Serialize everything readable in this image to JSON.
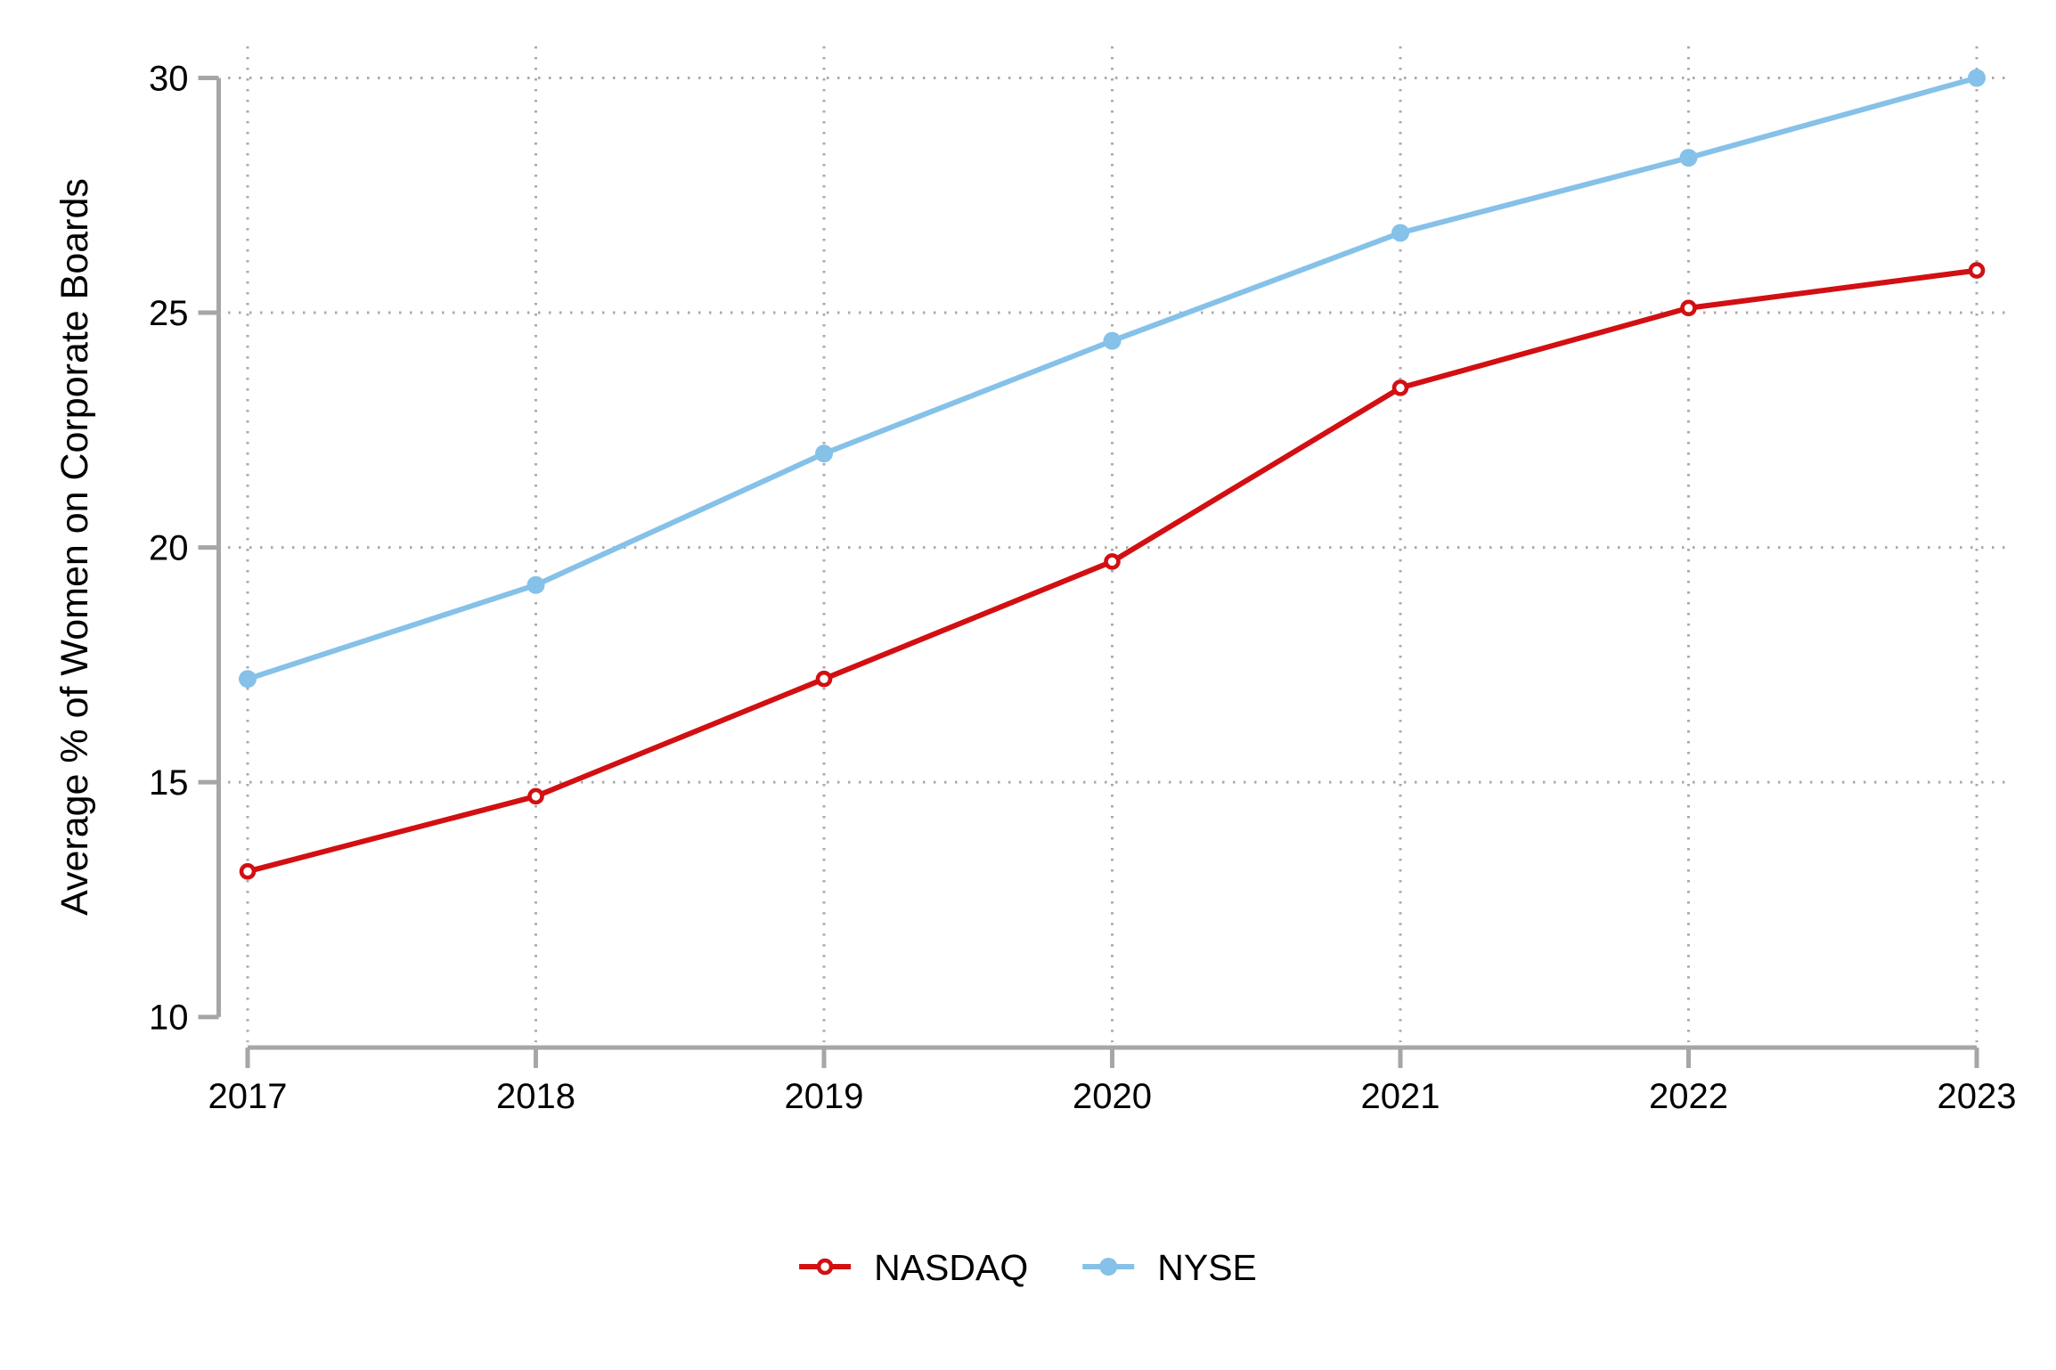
{
  "chart_data": {
    "type": "line",
    "title": "",
    "xlabel": "",
    "ylabel": "Average % of Women on Corporate Boards",
    "x": [
      2017,
      2018,
      2019,
      2020,
      2021,
      2022,
      2023
    ],
    "x_tick_labels": [
      "2017",
      "2018",
      "2019",
      "2020",
      "2021",
      "2022",
      "2023"
    ],
    "y_ticks": [
      10,
      15,
      20,
      25,
      30
    ],
    "y_gridlines": [
      15,
      20,
      25,
      30
    ],
    "ylim": [
      10,
      30
    ],
    "grid": "dotted",
    "legend_position": "bottom-center",
    "series": [
      {
        "name": "NASDAQ",
        "color": "#d20f12",
        "marker": "open-circle",
        "values": [
          13.1,
          14.7,
          17.2,
          19.7,
          23.4,
          25.1,
          25.9
        ]
      },
      {
        "name": "NYSE",
        "color": "#85c1e8",
        "marker": "filled-circle",
        "values": [
          17.2,
          19.2,
          22.0,
          24.4,
          26.7,
          28.3,
          30.0
        ]
      }
    ]
  },
  "colors": {
    "background": "#ffffff",
    "axis": "#a6a6a6",
    "grid": "#aaaaaa",
    "tick_text": "#000000"
  }
}
